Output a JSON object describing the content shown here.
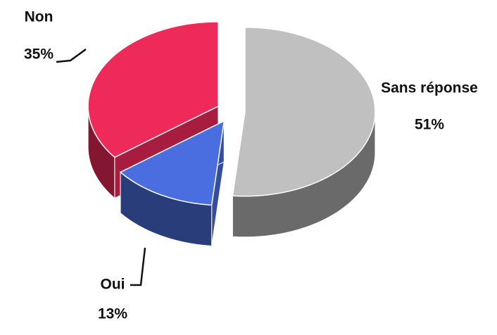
{
  "chart_data": {
    "type": "pie",
    "3d": true,
    "exploded": true,
    "categories": [
      "Sans réponse",
      "Oui",
      "Non"
    ],
    "values": [
      51,
      13,
      35
    ],
    "value_labels": [
      "51%",
      "13%",
      "35%"
    ],
    "colors": [
      "#c0c0c0",
      "#4a6ee0",
      "#ee2a5a"
    ]
  }
}
